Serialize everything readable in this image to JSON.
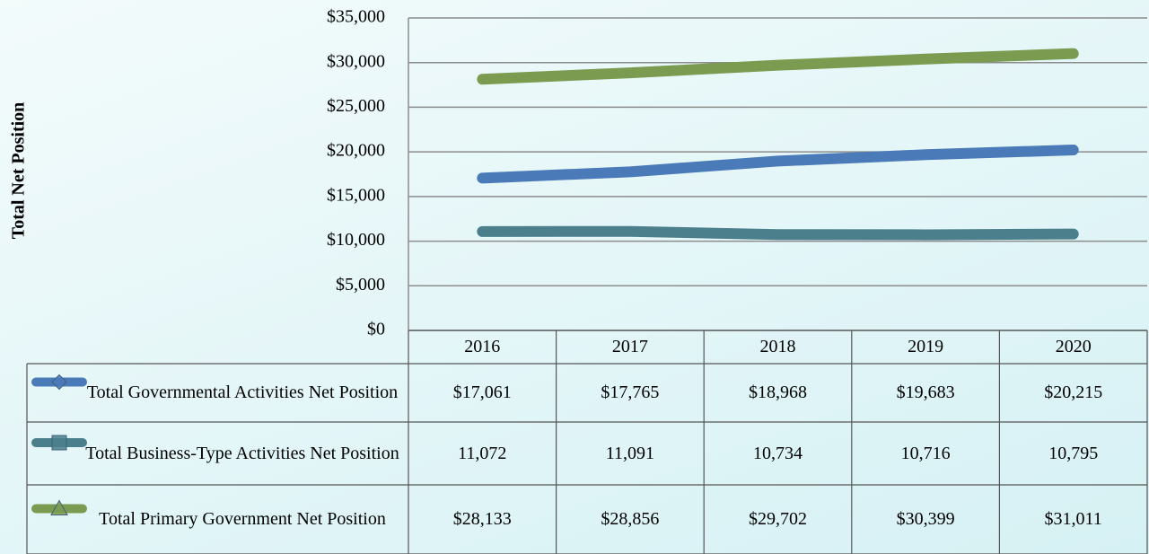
{
  "chart_data": {
    "type": "line",
    "y_axis_label": "Total Net Position",
    "categories": [
      "2016",
      "2017",
      "2018",
      "2019",
      "2020"
    ],
    "series": [
      {
        "name": "Total Governmental Activities Net Position",
        "color": "#4a7ab8",
        "marker": "diamond",
        "values": [
          17061,
          17765,
          18968,
          19683,
          20215
        ],
        "value_labels": [
          "$17,061",
          "$17,765",
          "$18,968",
          "$19,683",
          "$20,215"
        ]
      },
      {
        "name": "Total Business-Type Activities Net Position",
        "color": "#4b7f8b",
        "marker": "square",
        "values": [
          11072,
          11091,
          10734,
          10716,
          10795
        ],
        "value_labels": [
          "11,072",
          "11,091",
          "10,734",
          "10,716",
          "10,795"
        ]
      },
      {
        "name": "Total Primary Government Net Position",
        "color": "#7b9b50",
        "marker": "triangle",
        "values": [
          28133,
          28856,
          29702,
          30399,
          31011
        ],
        "value_labels": [
          "$28,133",
          "$28,856",
          "$29,702",
          "$30,399",
          "$31,011"
        ]
      }
    ],
    "ylim": [
      0,
      35000
    ],
    "yticks": [
      {
        "value": 0,
        "label": "$0"
      },
      {
        "value": 5000,
        "label": "$5,000"
      },
      {
        "value": 10000,
        "label": "$10,000"
      },
      {
        "value": 15000,
        "label": "$15,000"
      },
      {
        "value": 20000,
        "label": "$20,000"
      },
      {
        "value": 25000,
        "label": "$25,000"
      },
      {
        "value": 30000,
        "label": "$30,000"
      },
      {
        "value": 35000,
        "label": "$35,000"
      }
    ],
    "grid": true
  }
}
